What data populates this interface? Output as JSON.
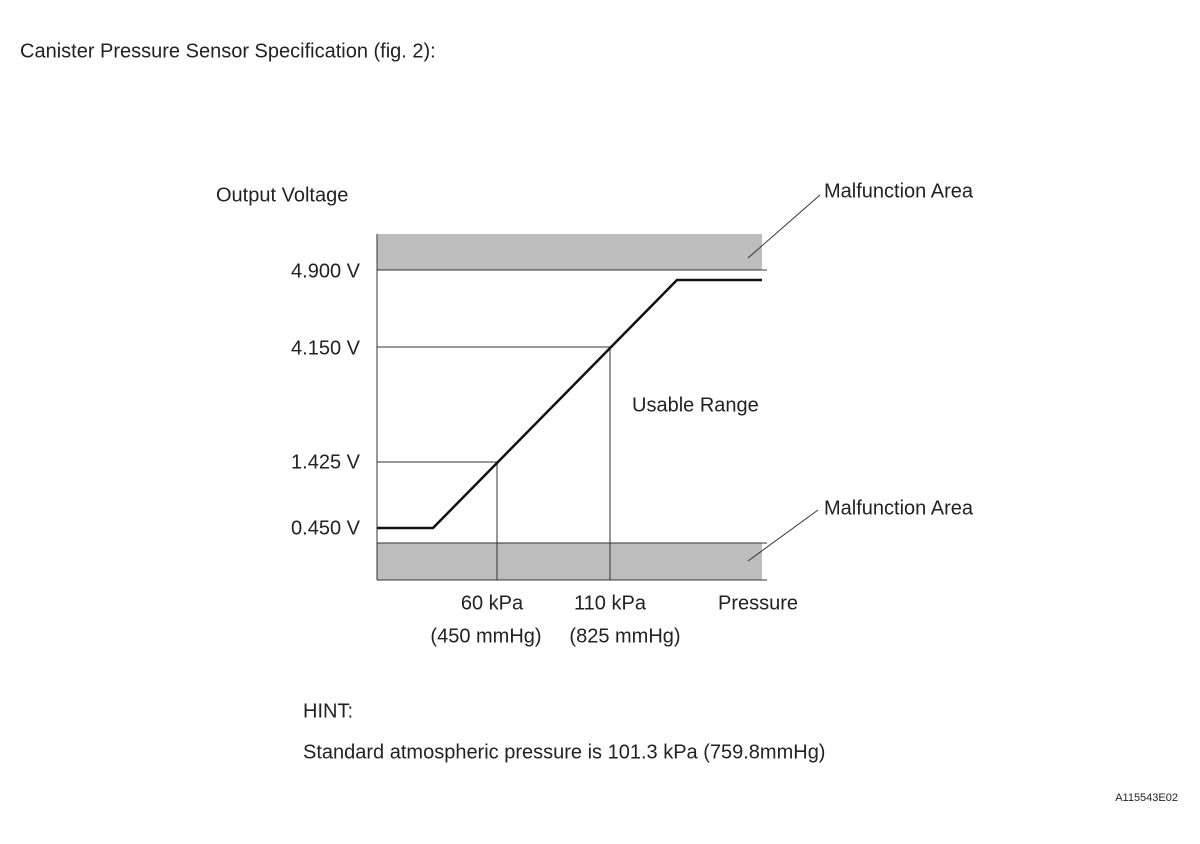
{
  "title": "Canister Pressure Sensor Specification (fig. 2):",
  "diagram": {
    "y_axis_label": "Output Voltage",
    "y_labels": [
      "4.900 V",
      "4.150 V",
      "1.425 V",
      "0.450 V"
    ],
    "x_labels": [
      {
        "pressure": "60 kPa",
        "mmhg": "(450 mmHg)"
      },
      {
        "pressure": "110 kPa",
        "mmhg": "(825 mmHg)"
      }
    ],
    "x_axis_label": "Pressure",
    "usable_range": "Usable Range",
    "malfunction_areas": [
      "Malfunction Area",
      "Malfunction Area"
    ]
  },
  "hint": {
    "label": "HINT:",
    "text": "Standard atmospheric pressure is 101.3 kPa (759.8mmHg)"
  },
  "figure_id": "A115543E02"
}
